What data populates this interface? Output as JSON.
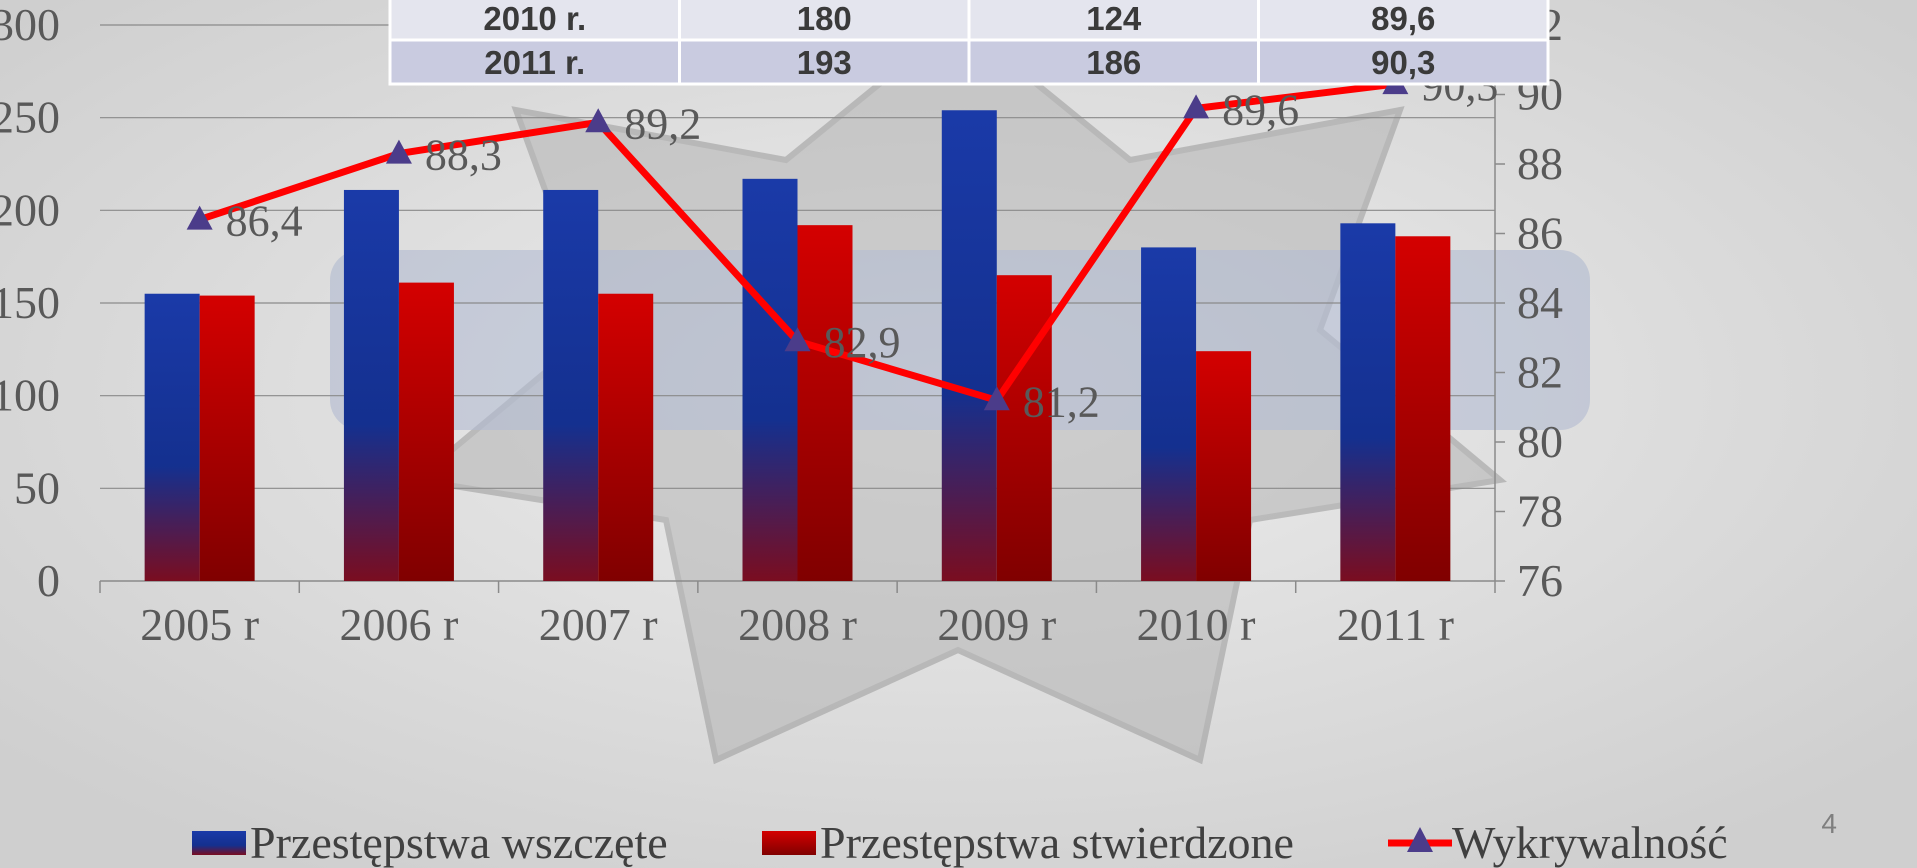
{
  "page_number": "4",
  "colors": {
    "started": "#1a33a0",
    "confirmed": "#c00000",
    "detection": "#ff0000",
    "marker": "#4b3c8a"
  },
  "table": {
    "rows": [
      [
        "2010 r.",
        "180",
        "124",
        "89,6"
      ],
      [
        "2011 r.",
        "193",
        "186",
        "90,3"
      ]
    ]
  },
  "chart_data": {
    "type": "bar",
    "categories": [
      "2005 r",
      "2006 r",
      "2007 r",
      "2008 r",
      "2009 r",
      "2010 r",
      "2011 r"
    ],
    "series": [
      {
        "name": "Przestępstwa wszczęte",
        "type": "bar",
        "axis": "left",
        "values": [
          155,
          211,
          211,
          217,
          254,
          180,
          193
        ]
      },
      {
        "name": "Przestępstwa stwierdzone",
        "type": "bar",
        "axis": "left",
        "values": [
          154,
          161,
          155,
          192,
          165,
          124,
          186
        ]
      },
      {
        "name": "Wykrywalność",
        "type": "line",
        "axis": "right",
        "values": [
          86.4,
          88.3,
          89.2,
          82.9,
          81.2,
          89.6,
          90.3
        ],
        "labels": [
          "86,4",
          "88,3",
          "89,2",
          "82,9",
          "81,2",
          "89,6",
          "90,3"
        ]
      }
    ],
    "ylim_left": [
      0,
      300
    ],
    "yticks_left": [
      "0",
      "50",
      "100",
      "150",
      "200",
      "250",
      "300"
    ],
    "ylim_right": [
      76,
      92
    ],
    "yticks_right": [
      "76",
      "78",
      "80",
      "82",
      "84",
      "86",
      "88",
      "90",
      "92"
    ],
    "grid": true,
    "legend_position": "bottom"
  }
}
